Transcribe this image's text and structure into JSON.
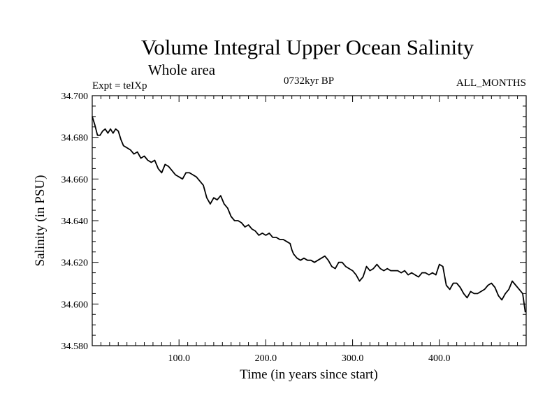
{
  "chart_data": {
    "type": "line",
    "title": "Volume Integral Upper Ocean Salinity",
    "subtitle": "Whole area",
    "label_left": "Expt = teIXp",
    "label_center": "0732kyr BP",
    "label_right": "ALL_MONTHS",
    "xlabel": "Time (in years since start)",
    "ylabel": "Salinity (in PSU)",
    "xlim": [
      0,
      500
    ],
    "ylim": [
      34.58,
      34.7
    ],
    "x_ticks": [
      100,
      200,
      300,
      400
    ],
    "x_tick_labels": [
      "100.0",
      "200.0",
      "300.0",
      "400.0"
    ],
    "y_ticks": [
      34.58,
      34.6,
      34.62,
      34.64,
      34.66,
      34.68,
      34.7
    ],
    "y_tick_labels": [
      "34.580",
      "34.600",
      "34.620",
      "34.640",
      "34.660",
      "34.680",
      "34.700"
    ],
    "grid": false,
    "line_color": "#000000",
    "series": [
      {
        "x": [
          0,
          3,
          6,
          9,
          12,
          15,
          18,
          21,
          24,
          27,
          30,
          33,
          36,
          40,
          44,
          48,
          52,
          56,
          60,
          64,
          68,
          72,
          76,
          80,
          84,
          88,
          92,
          96,
          100,
          104,
          108,
          112,
          116,
          120,
          124,
          128,
          132,
          136,
          140,
          144,
          148,
          152,
          156,
          160,
          164,
          168,
          172,
          176,
          180,
          184,
          188,
          192,
          196,
          200,
          204,
          208,
          212,
          216,
          220,
          224,
          228,
          230,
          232,
          236,
          240,
          244,
          248,
          252,
          256,
          260,
          264,
          268,
          272,
          276,
          280,
          284,
          288,
          292,
          296,
          300,
          304,
          308,
          312,
          316,
          320,
          324,
          328,
          332,
          336,
          340,
          344,
          348,
          352,
          356,
          360,
          364,
          368,
          372,
          376,
          380,
          384,
          388,
          392,
          396,
          400,
          404,
          408,
          412,
          416,
          420,
          424,
          428,
          432,
          436,
          440,
          444,
          448,
          452,
          456,
          460,
          464,
          468,
          472,
          476,
          480,
          484,
          488,
          492,
          496,
          499
        ],
        "values": [
          34.69,
          34.686,
          34.681,
          34.681,
          34.683,
          34.684,
          34.682,
          34.684,
          34.682,
          34.684,
          34.683,
          34.679,
          34.676,
          34.675,
          34.674,
          34.672,
          34.673,
          34.67,
          34.671,
          34.669,
          34.668,
          34.669,
          34.665,
          34.663,
          34.667,
          34.666,
          34.664,
          34.662,
          34.661,
          34.66,
          34.663,
          34.663,
          34.662,
          34.661,
          34.659,
          34.657,
          34.651,
          34.648,
          34.651,
          34.65,
          34.652,
          34.648,
          34.646,
          34.642,
          34.64,
          34.64,
          34.639,
          34.637,
          34.638,
          34.636,
          34.635,
          34.633,
          34.634,
          34.633,
          34.634,
          34.632,
          34.632,
          34.631,
          34.631,
          34.63,
          34.629,
          34.626,
          34.624,
          34.622,
          34.621,
          34.622,
          34.621,
          34.621,
          34.62,
          34.621,
          34.622,
          34.623,
          34.621,
          34.618,
          34.617,
          34.62,
          34.62,
          34.618,
          34.617,
          34.616,
          34.614,
          34.611,
          34.613,
          34.618,
          34.616,
          34.617,
          34.619,
          34.617,
          34.616,
          34.617,
          34.616,
          34.616,
          34.616,
          34.615,
          34.616,
          34.614,
          34.615,
          34.614,
          34.613,
          34.615,
          34.615,
          34.614,
          34.615,
          34.614,
          34.619,
          34.618,
          34.609,
          34.607,
          34.61,
          34.61,
          34.608,
          34.605,
          34.603,
          34.606,
          34.605,
          34.605,
          34.606,
          34.607,
          34.609,
          34.61,
          34.608,
          34.604,
          34.602,
          34.605,
          34.607,
          34.611,
          34.609,
          34.607,
          34.605,
          34.596
        ]
      }
    ]
  }
}
